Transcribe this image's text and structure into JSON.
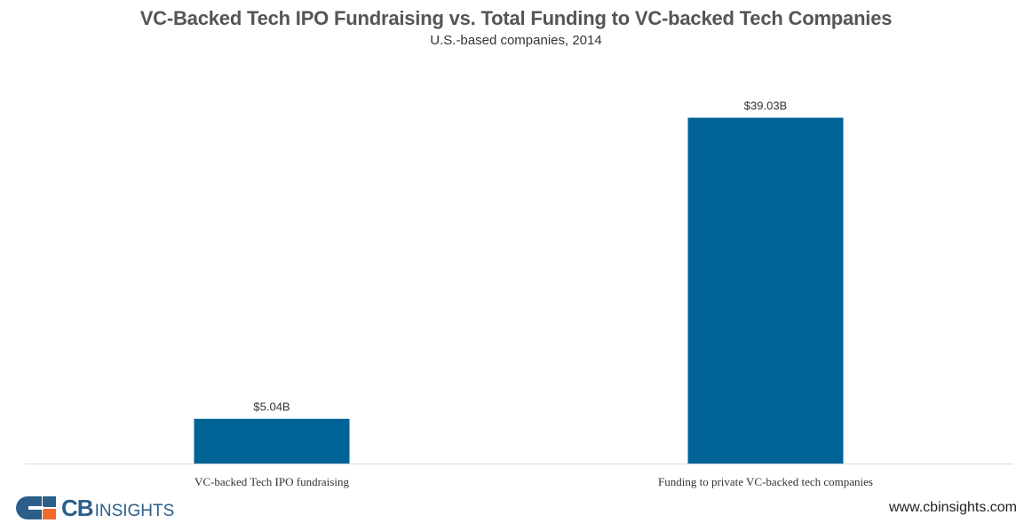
{
  "chart_data": {
    "type": "bar",
    "title": "VC-Backed Tech IPO Fundraising vs. Total Funding to VC-backed Tech Companies",
    "subtitle": "U.S.-based companies, 2014",
    "categories": [
      "VC-backed Tech IPO fundraising",
      "Funding to private VC-backed tech companies"
    ],
    "values": [
      5.04,
      39.03
    ],
    "data_labels": [
      "$5.04B",
      "$39.03B"
    ],
    "xlabel": "",
    "ylabel": "",
    "ylim": [
      0,
      44
    ],
    "grid": false,
    "bar_color": "#006395"
  },
  "footer": {
    "logo_cb": "CB",
    "logo_insights": "INSIGHTS",
    "website": "www.cbinsights.com"
  },
  "colors": {
    "logo_blue": "#2b5f8a",
    "logo_orange": "#f26b2a"
  }
}
